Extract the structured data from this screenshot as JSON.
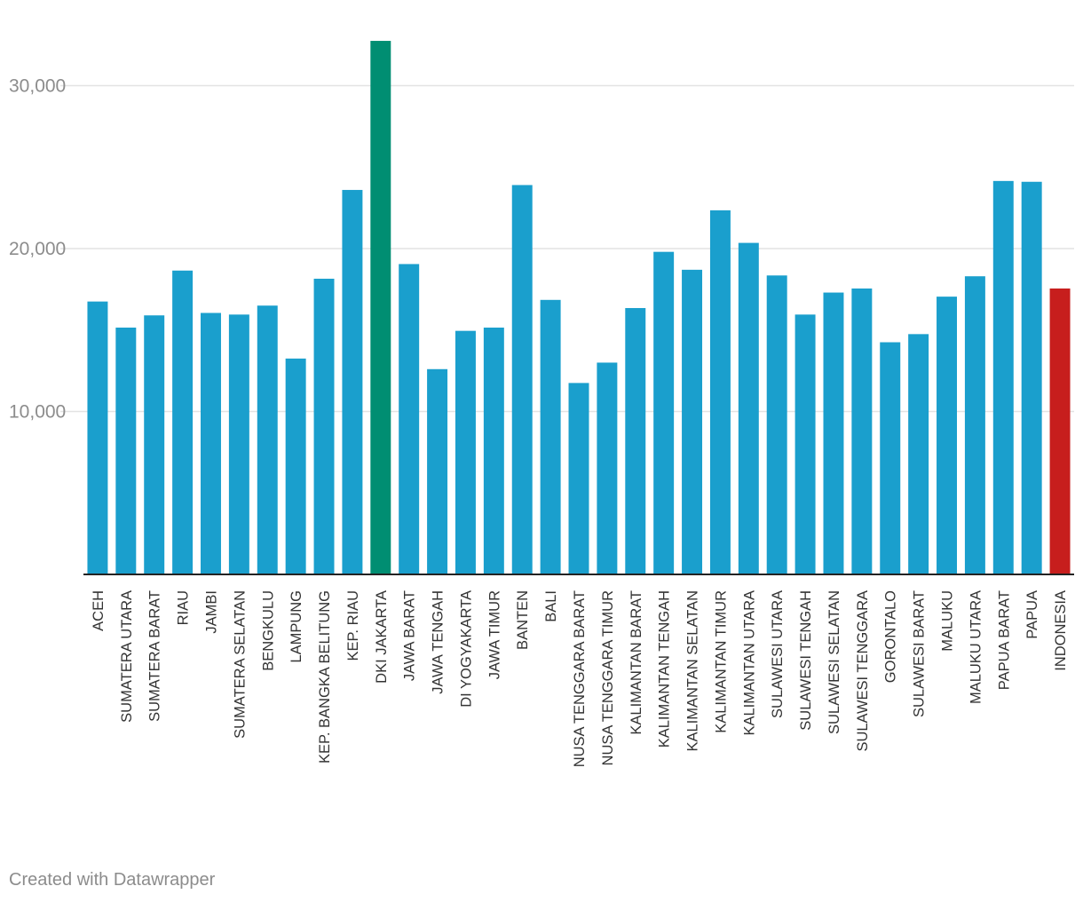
{
  "chart_data": {
    "type": "bar",
    "categories": [
      "ACEH",
      "SUMATERA UTARA",
      "SUMATERA BARAT",
      "RIAU",
      "JAMBI",
      "SUMATERA SELATAN",
      "BENGKULU",
      "LAMPUNG",
      "KEP. BANGKA BELITUNG",
      "KEP. RIAU",
      "DKI JAKARTA",
      "JAWA BARAT",
      "JAWA TENGAH",
      "DI YOGYAKARTA",
      "JAWA TIMUR",
      "BANTEN",
      "BALI",
      "NUSA TENGGARA BARAT",
      "NUSA TENGGARA TIMUR",
      "KALIMANTAN BARAT",
      "KALIMANTAN TENGAH",
      "KALIMANTAN SELATAN",
      "KALIMANTAN TIMUR",
      "KALIMANTAN UTARA",
      "SULAWESI UTARA",
      "SULAWESI TENGAH",
      "SULAWESI SELATAN",
      "SULAWESI TENGGARA",
      "GORONTALO",
      "SULAWESI BARAT",
      "MALUKU",
      "MALUKU UTARA",
      "PAPUA BARAT",
      "PAPUA",
      "INDONESIA"
    ],
    "values": [
      16750,
      15150,
      15900,
      18650,
      16050,
      15950,
      16500,
      13250,
      18150,
      23600,
      32750,
      19050,
      12600,
      14950,
      15150,
      23900,
      16850,
      11750,
      13000,
      16350,
      19800,
      18700,
      22350,
      20350,
      18350,
      15950,
      17300,
      17550,
      14250,
      14750,
      17050,
      18300,
      24150,
      24100,
      17550
    ],
    "bar_colors": [
      "#1a9fcd",
      "#1a9fcd",
      "#1a9fcd",
      "#1a9fcd",
      "#1a9fcd",
      "#1a9fcd",
      "#1a9fcd",
      "#1a9fcd",
      "#1a9fcd",
      "#1a9fcd",
      "#008e72",
      "#1a9fcd",
      "#1a9fcd",
      "#1a9fcd",
      "#1a9fcd",
      "#1a9fcd",
      "#1a9fcd",
      "#1a9fcd",
      "#1a9fcd",
      "#1a9fcd",
      "#1a9fcd",
      "#1a9fcd",
      "#1a9fcd",
      "#1a9fcd",
      "#1a9fcd",
      "#1a9fcd",
      "#1a9fcd",
      "#1a9fcd",
      "#1a9fcd",
      "#1a9fcd",
      "#1a9fcd",
      "#1a9fcd",
      "#1a9fcd",
      "#1a9fcd",
      "#c71e1d"
    ],
    "y_ticks": [
      10000,
      20000,
      30000
    ],
    "y_tick_labels": [
      "10,000",
      "20,000",
      "30,000"
    ],
    "ylim": [
      0,
      33000
    ],
    "grid": true,
    "title": "",
    "xlabel": "",
    "ylabel": ""
  },
  "footer": {
    "credit": "Created with Datawrapper"
  }
}
